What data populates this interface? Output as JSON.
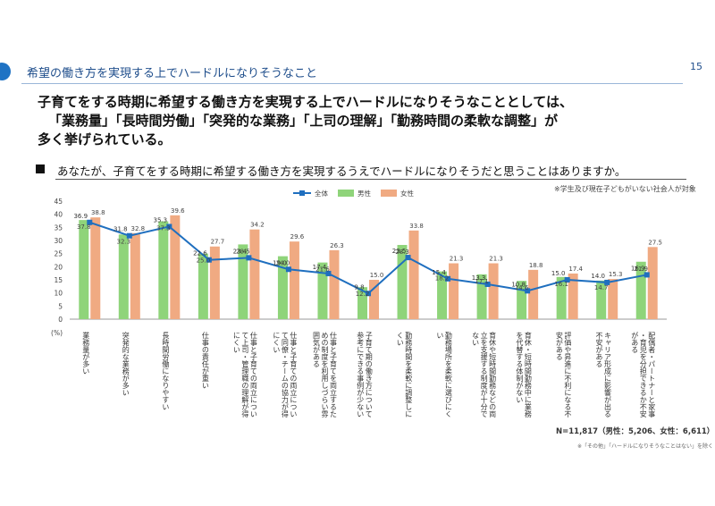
{
  "header": {
    "section_title": "希望の働き方を実現する上でハードルになりそうなこと",
    "page_number": "15"
  },
  "headline": {
    "line1": "子育てをする時期に希望する働き方を実現する上でハードルになりそうなこととしては、",
    "line2": "「業務量」「長時間労働」「突発的な業務」「上司の理解」「勤務時間の柔軟な調整」が",
    "line3": "多く挙げられている。"
  },
  "question": "あなたが、子育てをする時期に希望する働き方を実現するうえでハードルになりそうだと思うことはありますか。",
  "note_right": "※学生及び現在子どもがいない社会人が対象",
  "sample_size": "N=11,817（男性：5,206、女性：6,611）",
  "footnote": "※「その他」「ハードルになりそうなことはない」を除く",
  "colors": {
    "total": "#1f6fbf",
    "male": "#8fd47a",
    "female": "#f0aa82"
  },
  "chart_data": {
    "type": "bar",
    "ylim": [
      0,
      45
    ],
    "yticks": [
      0,
      5,
      10,
      15,
      20,
      25,
      30,
      35,
      40,
      45
    ],
    "yunit": "(%)",
    "legend_position": "top-center",
    "categories": [
      "業務量が多い",
      "突発的な業務が多い",
      "長時間労働になりやすい",
      "仕事の責任が重い",
      "仕事と子育ての両立について上司・管理職の理解が得にくい",
      "仕事と子育ての両立について同僚・チームの協力が得にくい",
      "仕事と子育てを両立するための制度を利用しづらい雰囲気がある",
      "子育て期の働き方について参考にできる事例が少ない",
      "勤務時間を柔軟に調整しにくい",
      "勤務場所を柔軟に選びにくい",
      "育休や短時間勤務などの両立を支援する制度が十分でない",
      "育休・短時間勤務中に業務を代替する体制がない",
      "評価や昇進に不利になる不安がある",
      "キャリア形成に影響が出る不安がある",
      "配偶者・パートナーと家事・育児を分担できるか不安がある"
    ],
    "series": [
      {
        "name": "全体",
        "kind": "line",
        "values": [
          36.9,
          31.8,
          35.3,
          22.6,
          23.4,
          19.0,
          17.4,
          9.8,
          23.5,
          15.4,
          13.3,
          10.8,
          15.0,
          14.0,
          16.9
        ]
      },
      {
        "name": "男性",
        "kind": "bar",
        "values": [
          37.8,
          32.3,
          37.3,
          25.0,
          28.5,
          24.0,
          21.6,
          12.2,
          28.3,
          18.2,
          17.1,
          14.6,
          16.1,
          14.7,
          21.9
        ]
      },
      {
        "name": "女性",
        "kind": "bar",
        "values": [
          38.8,
          32.8,
          39.6,
          27.7,
          34.2,
          29.6,
          26.3,
          15.0,
          33.8,
          21.3,
          21.3,
          18.8,
          17.4,
          15.3,
          27.5
        ]
      }
    ]
  }
}
